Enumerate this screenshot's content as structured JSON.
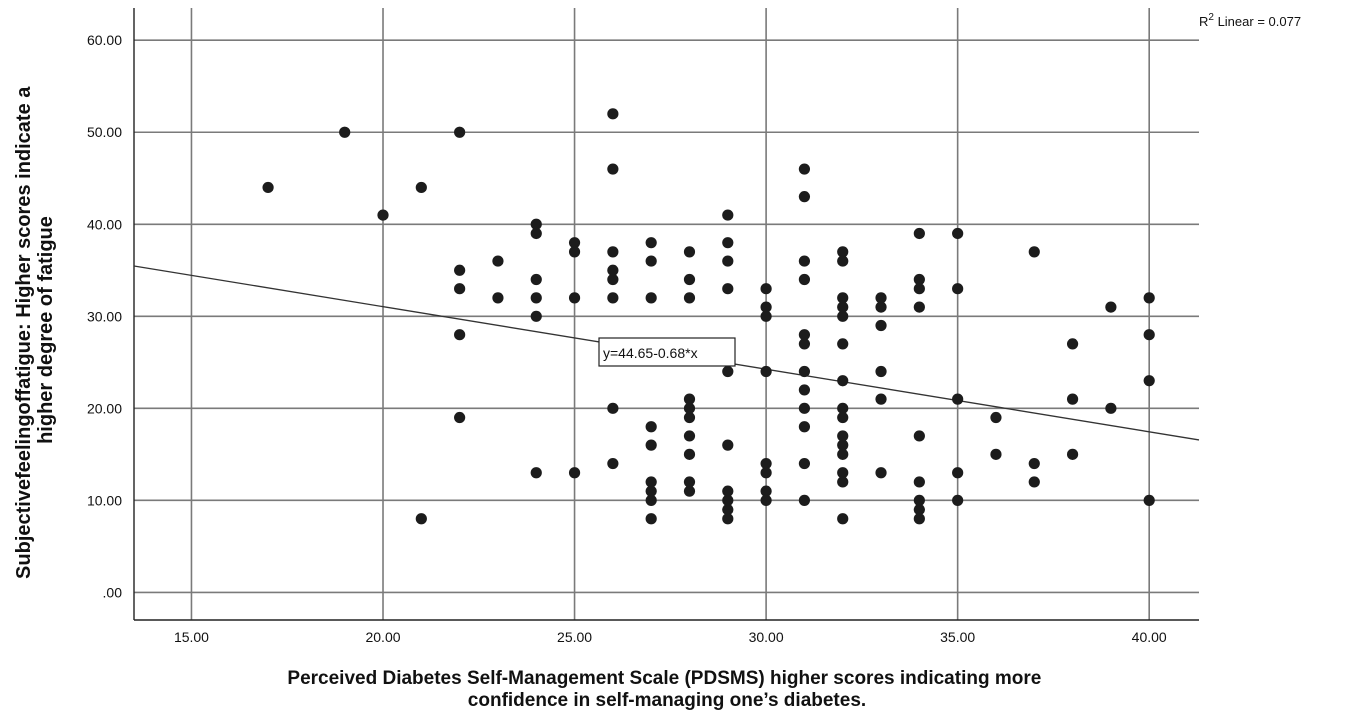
{
  "chart_data": {
    "type": "scatter",
    "title": "",
    "xlabel_lines": [
      "Perceived Diabetes Self-Management Scale (PDSMS) higher scores indicating more",
      "confidence in self-managing one’s diabetes."
    ],
    "ylabel_lines": [
      "Subjectivefeelingoffatigue: Higher scores indicate a",
      "higher degree of fatigue"
    ],
    "xlim": [
      13.5,
      41.3
    ],
    "ylim": [
      -3.0,
      63.5
    ],
    "x_ticks": [
      15,
      20,
      25,
      30,
      35,
      40
    ],
    "x_tick_labels": [
      "15.00",
      "20.00",
      "25.00",
      "30.00",
      "35.00",
      "40.00"
    ],
    "y_ticks": [
      0,
      10,
      20,
      30,
      40,
      50,
      60
    ],
    "y_tick_labels": [
      ".00",
      "10.00",
      "20.00",
      "30.00",
      "40.00",
      "50.00",
      "60.00"
    ],
    "grid": true,
    "fit_line": {
      "intercept": 44.65,
      "slope": -0.68
    },
    "equation_label": "y=44.65-0.68*x",
    "r2_label": {
      "prefix": "R",
      "sup": "2",
      "text": " Linear = 0.077"
    },
    "points": [
      [
        17,
        44
      ],
      [
        19,
        50
      ],
      [
        20,
        41
      ],
      [
        21,
        44
      ],
      [
        21,
        8
      ],
      [
        22,
        50
      ],
      [
        22,
        35
      ],
      [
        22,
        33
      ],
      [
        22,
        28
      ],
      [
        22,
        19
      ],
      [
        23,
        36
      ],
      [
        23,
        32
      ],
      [
        24,
        40
      ],
      [
        24,
        39
      ],
      [
        24,
        34
      ],
      [
        24,
        32
      ],
      [
        24,
        30
      ],
      [
        24,
        13
      ],
      [
        25,
        38
      ],
      [
        25,
        37
      ],
      [
        25,
        32
      ],
      [
        25,
        13
      ],
      [
        26,
        52
      ],
      [
        26,
        46
      ],
      [
        26,
        37
      ],
      [
        26,
        35
      ],
      [
        26,
        34
      ],
      [
        26,
        32
      ],
      [
        26,
        20
      ],
      [
        26,
        14
      ],
      [
        27,
        38
      ],
      [
        27,
        36
      ],
      [
        27,
        32
      ],
      [
        27,
        18
      ],
      [
        27,
        16
      ],
      [
        27,
        12
      ],
      [
        27,
        11
      ],
      [
        27,
        10
      ],
      [
        27,
        8
      ],
      [
        28,
        37
      ],
      [
        28,
        34
      ],
      [
        28,
        32
      ],
      [
        28,
        21
      ],
      [
        28,
        20
      ],
      [
        28,
        19
      ],
      [
        28,
        17
      ],
      [
        28,
        15
      ],
      [
        28,
        12
      ],
      [
        28,
        11
      ],
      [
        29,
        41
      ],
      [
        29,
        38
      ],
      [
        29,
        36
      ],
      [
        29,
        33
      ],
      [
        29,
        24
      ],
      [
        29,
        16
      ],
      [
        29,
        11
      ],
      [
        29,
        10
      ],
      [
        29,
        9
      ],
      [
        29,
        8
      ],
      [
        30,
        33
      ],
      [
        30,
        31
      ],
      [
        30,
        30
      ],
      [
        30,
        24
      ],
      [
        30,
        14
      ],
      [
        30,
        13
      ],
      [
        30,
        11
      ],
      [
        30,
        10
      ],
      [
        31,
        46
      ],
      [
        31,
        43
      ],
      [
        31,
        36
      ],
      [
        31,
        34
      ],
      [
        31,
        28
      ],
      [
        31,
        27
      ],
      [
        31,
        24
      ],
      [
        31,
        22
      ],
      [
        31,
        20
      ],
      [
        31,
        18
      ],
      [
        31,
        14
      ],
      [
        31,
        10
      ],
      [
        32,
        37
      ],
      [
        32,
        36
      ],
      [
        32,
        32
      ],
      [
        32,
        31
      ],
      [
        32,
        30
      ],
      [
        32,
        27
      ],
      [
        32,
        23
      ],
      [
        32,
        20
      ],
      [
        32,
        19
      ],
      [
        32,
        17
      ],
      [
        32,
        16
      ],
      [
        32,
        15
      ],
      [
        32,
        13
      ],
      [
        32,
        12
      ],
      [
        32,
        8
      ],
      [
        33,
        32
      ],
      [
        33,
        31
      ],
      [
        33,
        29
      ],
      [
        33,
        24
      ],
      [
        33,
        21
      ],
      [
        33,
        13
      ],
      [
        34,
        39
      ],
      [
        34,
        34
      ],
      [
        34,
        33
      ],
      [
        34,
        31
      ],
      [
        34,
        17
      ],
      [
        34,
        12
      ],
      [
        34,
        10
      ],
      [
        34,
        9
      ],
      [
        34,
        8
      ],
      [
        35,
        39
      ],
      [
        35,
        33
      ],
      [
        35,
        21
      ],
      [
        35,
        13
      ],
      [
        35,
        10
      ],
      [
        36,
        19
      ],
      [
        36,
        15
      ],
      [
        37,
        37
      ],
      [
        37,
        14
      ],
      [
        37,
        12
      ],
      [
        38,
        27
      ],
      [
        38,
        21
      ],
      [
        38,
        15
      ],
      [
        39,
        31
      ],
      [
        39,
        20
      ],
      [
        40,
        32
      ],
      [
        40,
        28
      ],
      [
        40,
        23
      ],
      [
        40,
        10
      ]
    ]
  }
}
